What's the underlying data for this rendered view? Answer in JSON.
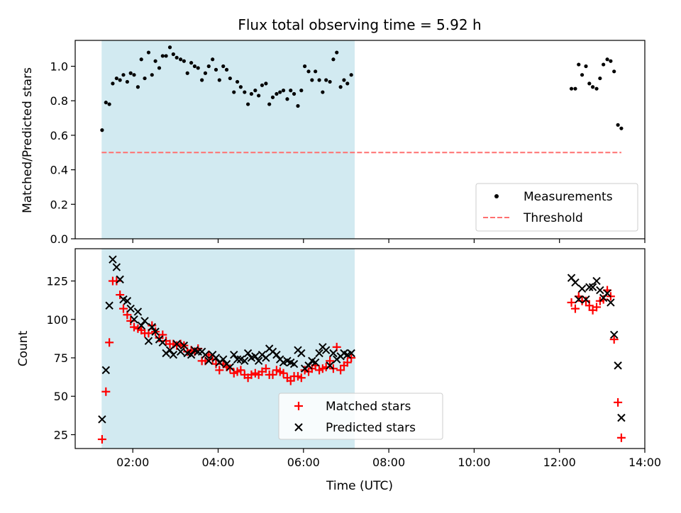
{
  "figure": {
    "title": "Flux total observing time = 5.92 h",
    "xlabel": "Time (UTC)",
    "xticks": [
      "02:00",
      "04:00",
      "06:00",
      "08:00",
      "10:00",
      "12:00",
      "14:00"
    ]
  },
  "chart_data": [
    {
      "type": "scatter",
      "ylabel": "Matched/Predicted stars",
      "xlim": [
        0.65,
        14.0
      ],
      "ylim": [
        0,
        1.15
      ],
      "yticks": [
        "0.0",
        "0.2",
        "0.4",
        "0.6",
        "0.8",
        "1.0"
      ],
      "ytick_values": [
        0,
        0.2,
        0.4,
        0.6,
        0.8,
        1.0
      ],
      "shaded_span": [
        1.27,
        7.2
      ],
      "shaded_color": "#add8e6",
      "legend_position": "lower-right",
      "threshold": {
        "name": "Threshold",
        "y": 0.5,
        "x": [
          1.27,
          13.45
        ],
        "color": "#ff7070",
        "style": "dashed"
      },
      "series": [
        {
          "name": "Measurements",
          "color": "#000000",
          "marker": "dot",
          "x": [
            1.28,
            1.37,
            1.45,
            1.53,
            1.62,
            1.7,
            1.78,
            1.87,
            1.95,
            2.03,
            2.12,
            2.2,
            2.28,
            2.37,
            2.45,
            2.53,
            2.62,
            2.7,
            2.78,
            2.87,
            2.95,
            3.03,
            3.12,
            3.2,
            3.28,
            3.37,
            3.45,
            3.53,
            3.62,
            3.7,
            3.78,
            3.87,
            3.95,
            4.03,
            4.12,
            4.2,
            4.28,
            4.37,
            4.45,
            4.53,
            4.62,
            4.7,
            4.78,
            4.87,
            4.95,
            5.03,
            5.12,
            5.2,
            5.28,
            5.37,
            5.45,
            5.53,
            5.62,
            5.7,
            5.78,
            5.87,
            5.95,
            6.03,
            6.12,
            6.2,
            6.28,
            6.37,
            6.45,
            6.53,
            6.62,
            6.7,
            6.78,
            6.87,
            6.95,
            7.03,
            7.12,
            12.28,
            12.37,
            12.45,
            12.53,
            12.62,
            12.7,
            12.78,
            12.87,
            12.95,
            13.03,
            13.12,
            13.2,
            13.28,
            13.37,
            13.45
          ],
          "y": [
            0.63,
            0.79,
            0.78,
            0.9,
            0.93,
            0.92,
            0.95,
            0.91,
            0.96,
            0.95,
            0.88,
            1.04,
            0.93,
            1.08,
            0.95,
            1.03,
            0.99,
            1.06,
            1.06,
            1.11,
            1.07,
            1.05,
            1.04,
            1.03,
            0.96,
            1.02,
            1.0,
            0.99,
            0.92,
            0.96,
            1.0,
            1.04,
            0.98,
            0.92,
            1.0,
            0.98,
            0.93,
            0.85,
            0.91,
            0.88,
            0.85,
            0.78,
            0.84,
            0.86,
            0.83,
            0.89,
            0.9,
            0.78,
            0.82,
            0.84,
            0.85,
            0.86,
            0.81,
            0.86,
            0.84,
            0.77,
            0.86,
            1.0,
            0.97,
            0.92,
            0.97,
            0.92,
            0.85,
            0.92,
            0.91,
            1.04,
            1.08,
            0.88,
            0.92,
            0.9,
            0.95,
            0.87,
            0.87,
            1.01,
            0.95,
            1.0,
            0.9,
            0.88,
            0.87,
            0.93,
            1.01,
            1.04,
            1.03,
            0.97,
            0.66,
            0.64
          ]
        }
      ]
    },
    {
      "type": "scatter",
      "ylabel": "Count",
      "xlim": [
        0.65,
        14.0
      ],
      "ylim": [
        16,
        146
      ],
      "yticks": [
        "25",
        "50",
        "75",
        "100",
        "125"
      ],
      "ytick_values": [
        25,
        50,
        75,
        100,
        125
      ],
      "shaded_span": [
        1.27,
        7.2
      ],
      "shaded_color": "#add8e6",
      "legend_position": "lower-center",
      "series": [
        {
          "name": "Matched stars",
          "color": "#ff0000",
          "marker": "plus",
          "x": [
            1.28,
            1.37,
            1.45,
            1.53,
            1.62,
            1.7,
            1.78,
            1.87,
            1.95,
            2.03,
            2.12,
            2.2,
            2.28,
            2.37,
            2.45,
            2.53,
            2.62,
            2.7,
            2.78,
            2.87,
            2.95,
            3.03,
            3.12,
            3.2,
            3.28,
            3.37,
            3.45,
            3.53,
            3.62,
            3.7,
            3.78,
            3.87,
            3.95,
            4.03,
            4.12,
            4.2,
            4.28,
            4.37,
            4.45,
            4.53,
            4.62,
            4.7,
            4.78,
            4.87,
            4.95,
            5.03,
            5.12,
            5.2,
            5.28,
            5.37,
            5.45,
            5.53,
            5.62,
            5.7,
            5.78,
            5.87,
            5.95,
            6.03,
            6.12,
            6.2,
            6.28,
            6.37,
            6.45,
            6.53,
            6.62,
            6.7,
            6.78,
            6.87,
            6.95,
            7.03,
            7.12,
            12.28,
            12.37,
            12.45,
            12.53,
            12.62,
            12.7,
            12.78,
            12.87,
            12.95,
            13.03,
            13.12,
            13.2,
            13.28,
            13.37,
            13.45
          ],
          "y": [
            22,
            53,
            85,
            125,
            125,
            116,
            107,
            103,
            99,
            95,
            94,
            93,
            91,
            91,
            96,
            92,
            88,
            90,
            86,
            84,
            84,
            83,
            84,
            83,
            79,
            80,
            79,
            81,
            73,
            73,
            77,
            74,
            71,
            67,
            71,
            69,
            68,
            65,
            66,
            67,
            64,
            62,
            64,
            65,
            64,
            66,
            68,
            64,
            64,
            67,
            66,
            65,
            62,
            60,
            63,
            63,
            62,
            67,
            66,
            68,
            70,
            67,
            68,
            69,
            73,
            68,
            82,
            67,
            70,
            72,
            75,
            111,
            107,
            115,
            112,
            112,
            109,
            106,
            108,
            112,
            113,
            119,
            115,
            87,
            46,
            23
          ]
        },
        {
          "name": "Predicted stars",
          "color": "#000000",
          "marker": "x",
          "x": [
            1.28,
            1.37,
            1.45,
            1.53,
            1.62,
            1.7,
            1.78,
            1.87,
            1.95,
            2.03,
            2.12,
            2.2,
            2.28,
            2.37,
            2.45,
            2.53,
            2.62,
            2.7,
            2.78,
            2.87,
            2.95,
            3.03,
            3.12,
            3.2,
            3.28,
            3.37,
            3.45,
            3.53,
            3.62,
            3.7,
            3.78,
            3.87,
            3.95,
            4.03,
            4.12,
            4.2,
            4.28,
            4.37,
            4.45,
            4.53,
            4.62,
            4.7,
            4.78,
            4.87,
            4.95,
            5.03,
            5.12,
            5.2,
            5.28,
            5.37,
            5.45,
            5.53,
            5.62,
            5.7,
            5.78,
            5.87,
            5.95,
            6.03,
            6.12,
            6.2,
            6.28,
            6.37,
            6.45,
            6.53,
            6.62,
            6.7,
            6.78,
            6.87,
            6.95,
            7.03,
            7.12,
            12.28,
            12.37,
            12.45,
            12.53,
            12.62,
            12.7,
            12.78,
            12.87,
            12.95,
            13.03,
            13.12,
            13.2,
            13.28,
            13.37,
            13.45
          ],
          "y": [
            35,
            67,
            109,
            139,
            134,
            126,
            113,
            112,
            107,
            100,
            105,
            96,
            99,
            86,
            95,
            92,
            87,
            85,
            78,
            80,
            77,
            84,
            79,
            83,
            78,
            77,
            80,
            79,
            79,
            77,
            73,
            77,
            75,
            72,
            74,
            71,
            69,
            77,
            74,
            74,
            73,
            78,
            75,
            76,
            73,
            77,
            75,
            81,
            79,
            77,
            74,
            72,
            73,
            72,
            71,
            80,
            78,
            68,
            70,
            73,
            72,
            78,
            82,
            80,
            70,
            78,
            74,
            76,
            78,
            77,
            78,
            127,
            124,
            113,
            120,
            113,
            121,
            121,
            125,
            119,
            114,
            117,
            111,
            90,
            70,
            36
          ]
        }
      ]
    }
  ]
}
